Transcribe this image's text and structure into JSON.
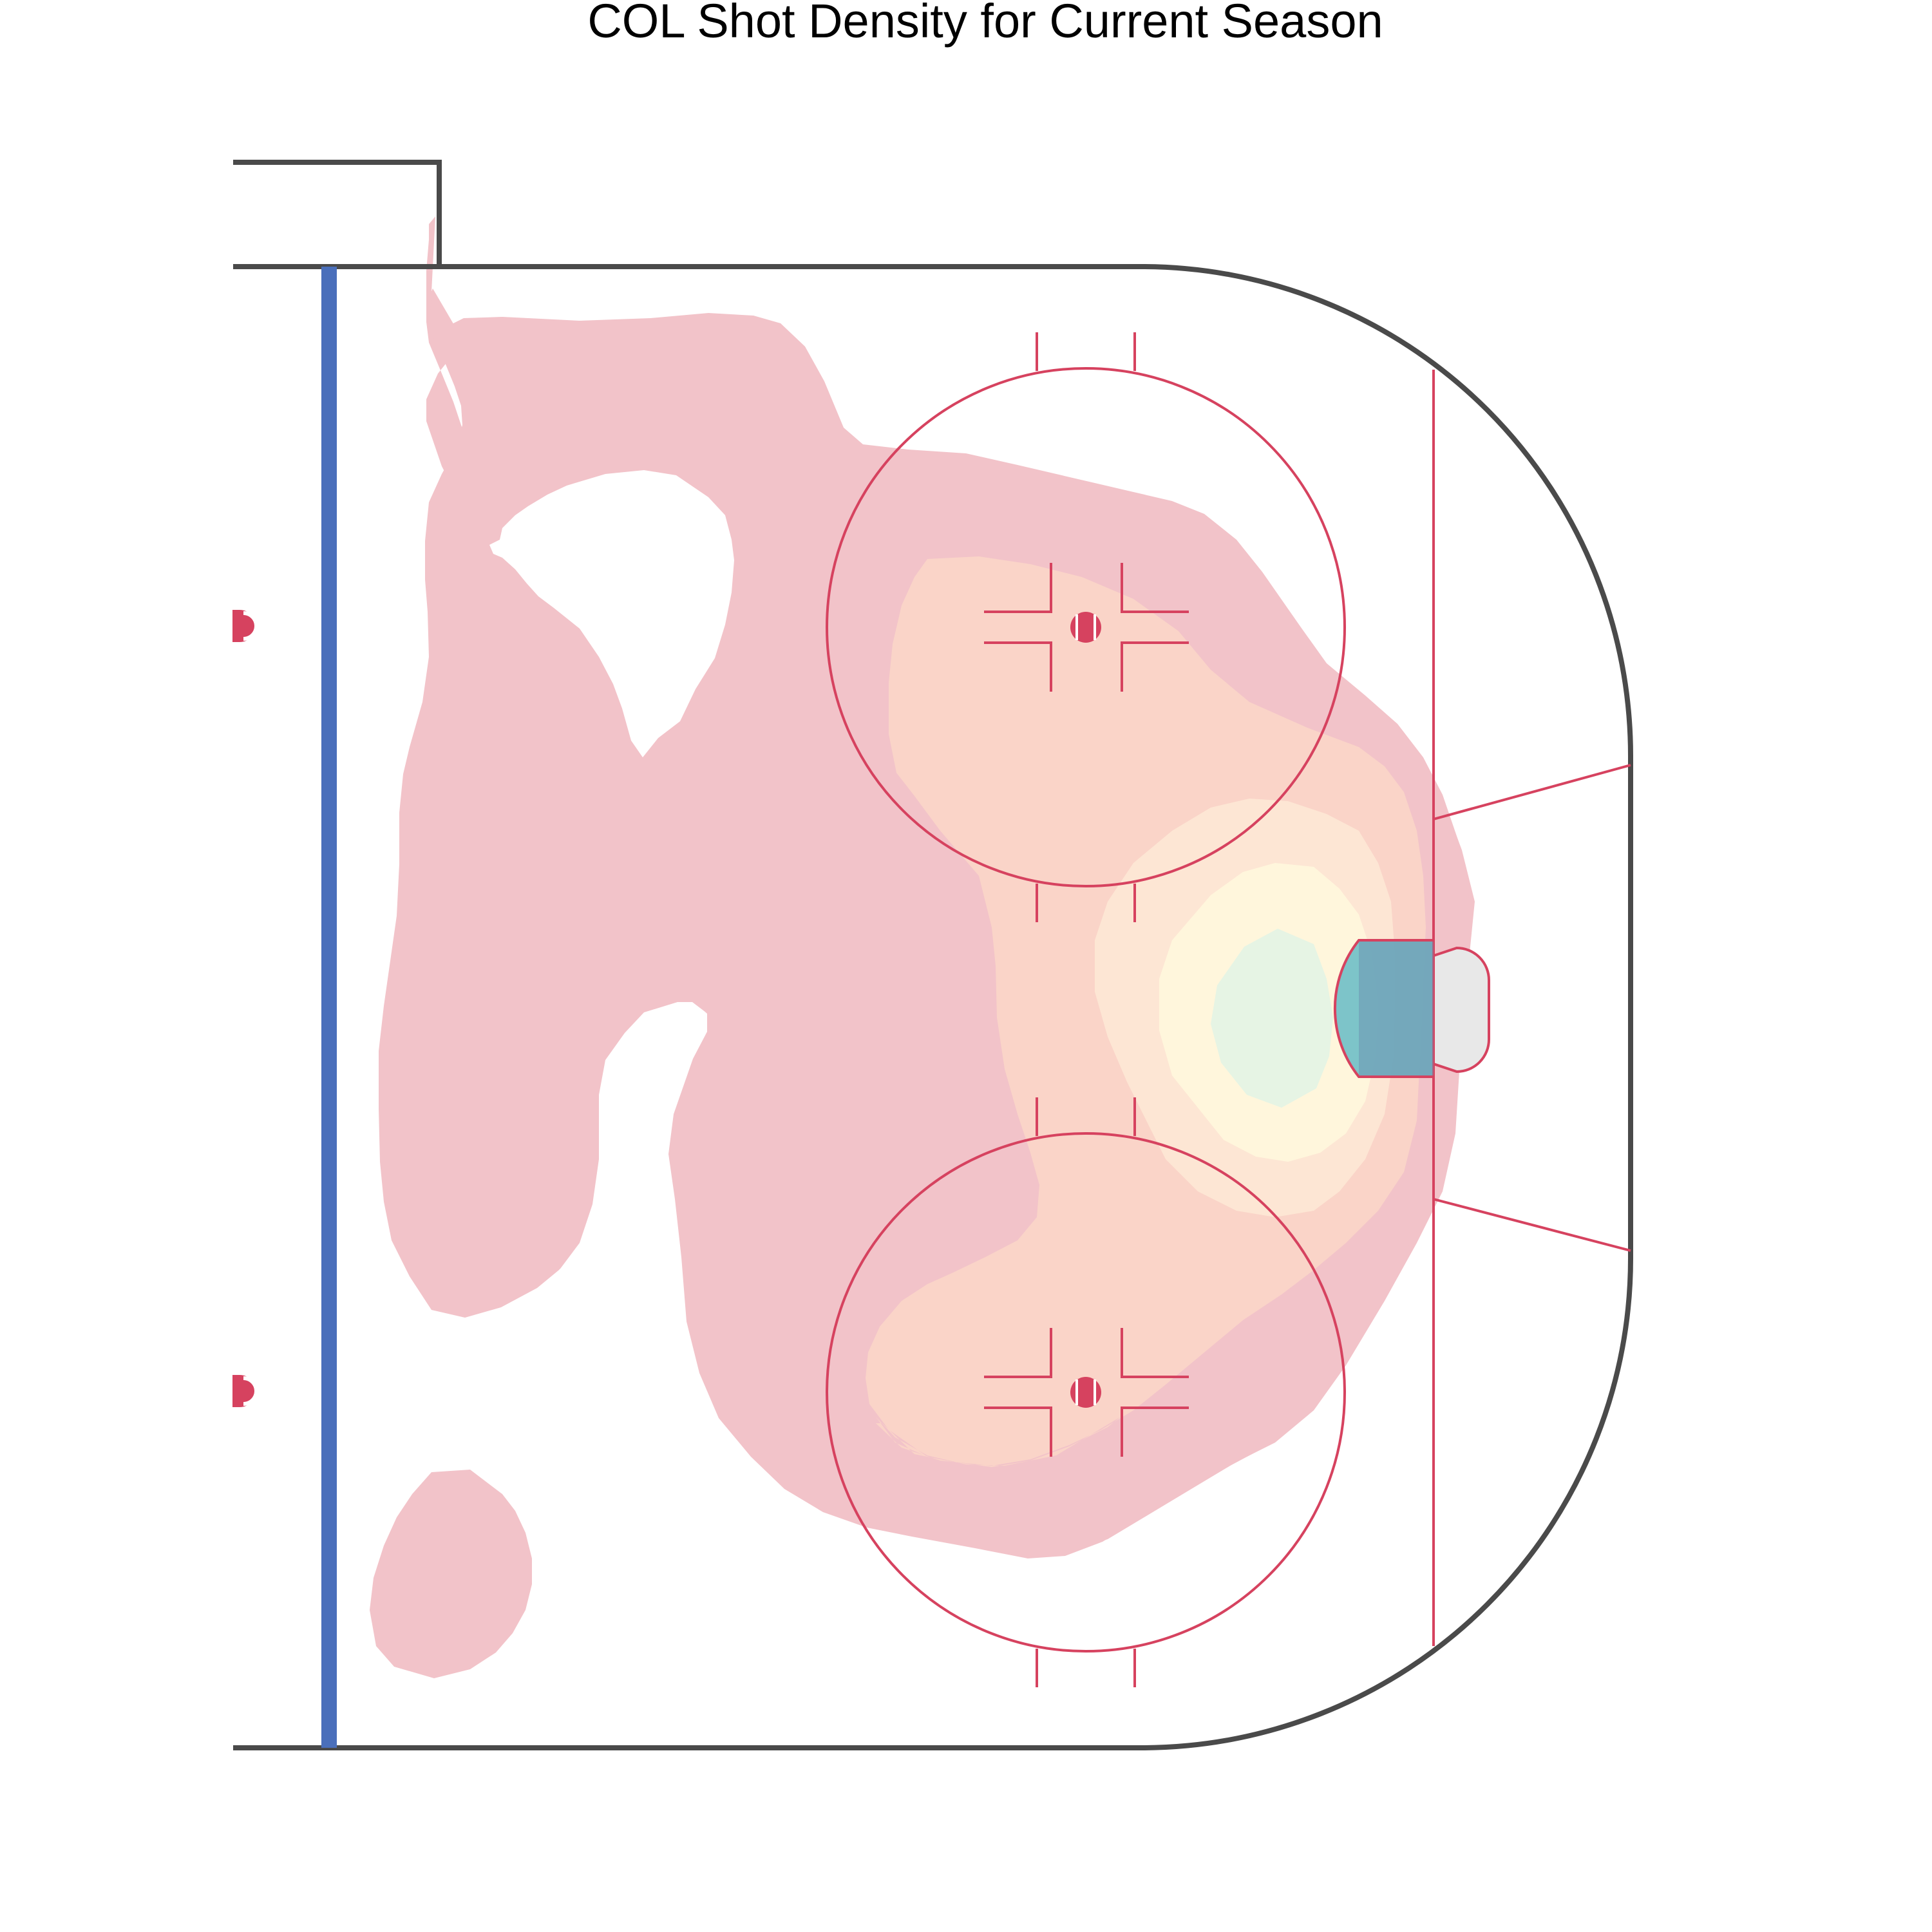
{
  "chart_data": {
    "type": "heatmap",
    "title": "COL Shot Density for Current Season",
    "subject": "hockey offensive-zone shot density (kernel density contours)",
    "xlabel": "",
    "ylabel": "",
    "grid": false,
    "legend": "none",
    "levels": [
      {
        "level": 1,
        "color": "#f2c3c9",
        "meaning": "lowest density"
      },
      {
        "level": 2,
        "color": "#fad4c8"
      },
      {
        "level": 3,
        "color": "#fde6d4"
      },
      {
        "level": 4,
        "color": "#fff6dc"
      },
      {
        "level": 5,
        "color": "#e6f4e4",
        "meaning": "highest density"
      }
    ],
    "hotspot": "slot directly in front of the goal crease"
  },
  "rink": {
    "board_color": "#4a4a4a",
    "blue_line_color": "#4a6fbb",
    "red_line_color": "#d6425f",
    "crease_color": "#6fbfc6",
    "goal_net_color": "#e8e8e8"
  }
}
